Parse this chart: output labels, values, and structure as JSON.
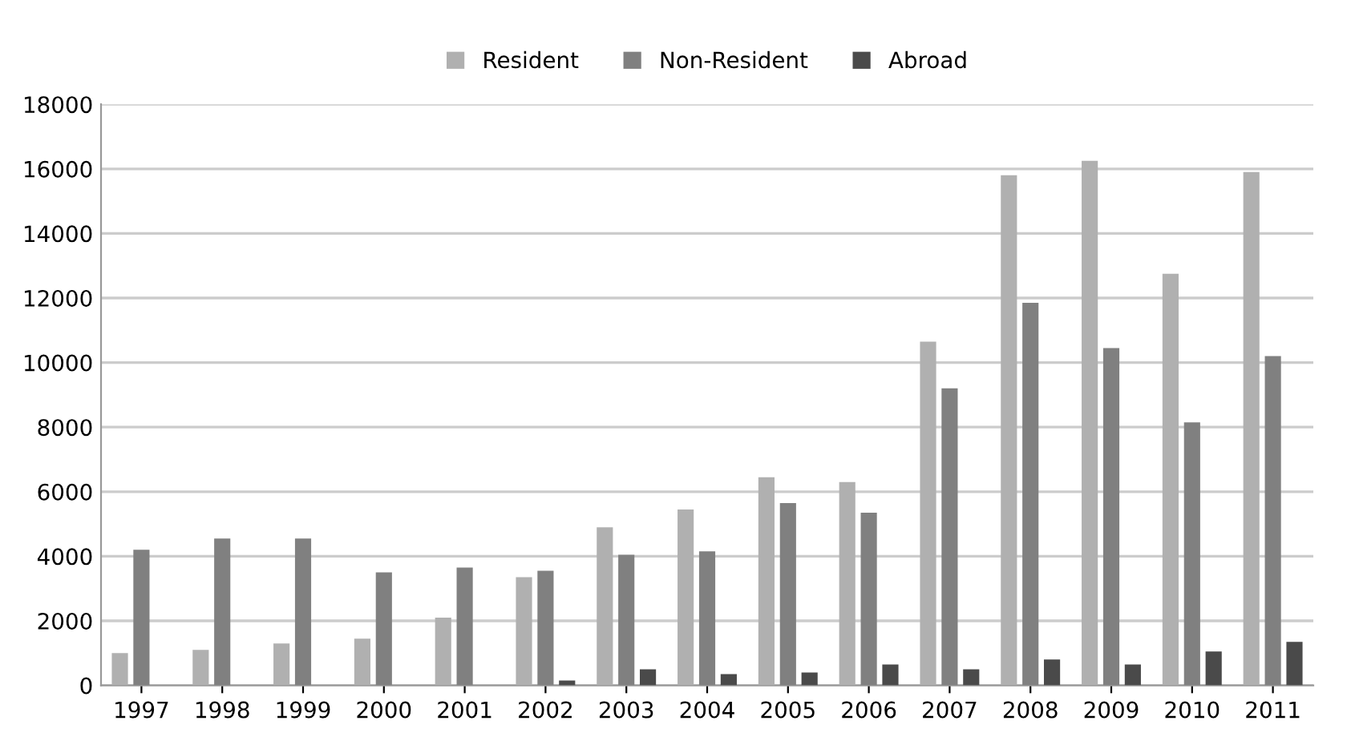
{
  "chart_data": {
    "type": "bar",
    "categories": [
      "1997",
      "1998",
      "1999",
      "2000",
      "2001",
      "2002",
      "2003",
      "2004",
      "2005",
      "2006",
      "2007",
      "2008",
      "2009",
      "2010",
      "2011"
    ],
    "series": [
      {
        "name": "Resident",
        "color": "#b0b0b0",
        "values": [
          1000,
          1100,
          1300,
          1450,
          2100,
          3350,
          4900,
          5450,
          6450,
          6300,
          10650,
          15800,
          16250,
          12750,
          15900
        ]
      },
      {
        "name": "Non-Resident",
        "color": "#808080",
        "values": [
          4200,
          4550,
          4550,
          3500,
          3650,
          3550,
          4050,
          4150,
          5650,
          5350,
          9200,
          11850,
          10450,
          8150,
          10200
        ]
      },
      {
        "name": "Abroad",
        "color": "#4a4a4a",
        "values": [
          null,
          null,
          null,
          null,
          null,
          150,
          500,
          350,
          400,
          650,
          500,
          800,
          650,
          1050,
          1350
        ]
      }
    ],
    "ylim": [
      0,
      18000
    ],
    "yticks": [
      0,
      2000,
      4000,
      6000,
      8000,
      10000,
      12000,
      14000,
      16000,
      18000
    ],
    "grid": "y",
    "legend": "top"
  }
}
